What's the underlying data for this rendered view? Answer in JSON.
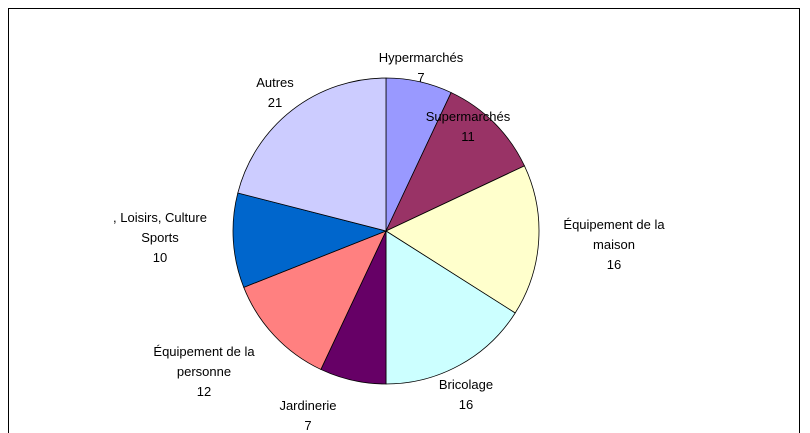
{
  "chart_data": {
    "type": "pie",
    "categories": [
      "Hypermarchés",
      "Supermarchés",
      "Équipement de la maison",
      "Bricolage",
      "Jardinerie",
      "Équipement de la personne",
      ", Loisirs, Culture Sports",
      "Autres"
    ],
    "values": [
      7,
      11,
      16,
      16,
      7,
      12,
      10,
      21
    ],
    "colors": [
      "#9999ff",
      "#993366",
      "#ffffcc",
      "#ccffff",
      "#660066",
      "#ff8080",
      "#0066cc",
      "#ccccff"
    ]
  }
}
